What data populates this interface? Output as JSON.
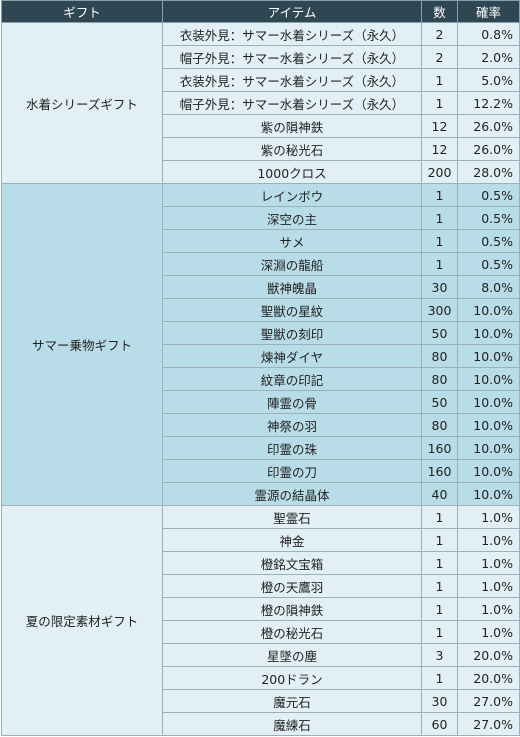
{
  "header": {
    "gift": "ギフト",
    "item": "アイテム",
    "qty": "数",
    "rate": "確率"
  },
  "groups": [
    {
      "name": "水着シリーズギフト",
      "rows": [
        {
          "item": "衣装外見：サマー水着シリーズ（永久）",
          "qty": "2",
          "rate": "0.8%"
        },
        {
          "item": "帽子外見：サマー水着シリーズ（永久）",
          "qty": "2",
          "rate": "2.0%"
        },
        {
          "item": "衣装外見：サマー水着シリーズ（永久）",
          "qty": "1",
          "rate": "5.0%"
        },
        {
          "item": "帽子外見：サマー水着シリーズ（永久）",
          "qty": "1",
          "rate": "12.2%"
        },
        {
          "item": "紫の隕神鉄",
          "qty": "12",
          "rate": "26.0%"
        },
        {
          "item": "紫の秘光石",
          "qty": "12",
          "rate": "26.0%"
        },
        {
          "item": "1000クロス",
          "qty": "200",
          "rate": "28.0%"
        }
      ]
    },
    {
      "name": "サマー乗物ギフト",
      "rows": [
        {
          "item": "レインボウ",
          "qty": "1",
          "rate": "0.5%"
        },
        {
          "item": "深空の主",
          "qty": "1",
          "rate": "0.5%"
        },
        {
          "item": "サメ",
          "qty": "1",
          "rate": "0.5%"
        },
        {
          "item": "深淵の龍船",
          "qty": "1",
          "rate": "0.5%"
        },
        {
          "item": "獣神魄晶",
          "qty": "30",
          "rate": "8.0%"
        },
        {
          "item": "聖獣の星紋",
          "qty": "300",
          "rate": "10.0%"
        },
        {
          "item": "聖獣の刻印",
          "qty": "50",
          "rate": "10.0%"
        },
        {
          "item": "煉神ダイヤ",
          "qty": "80",
          "rate": "10.0%"
        },
        {
          "item": "紋章の印記",
          "qty": "80",
          "rate": "10.0%"
        },
        {
          "item": "陣霊の骨",
          "qty": "50",
          "rate": "10.0%"
        },
        {
          "item": "神祭の羽",
          "qty": "80",
          "rate": "10.0%"
        },
        {
          "item": "印霊の珠",
          "qty": "160",
          "rate": "10.0%"
        },
        {
          "item": "印霊の刀",
          "qty": "160",
          "rate": "10.0%"
        },
        {
          "item": "霊源の結晶体",
          "qty": "40",
          "rate": "10.0%"
        }
      ]
    },
    {
      "name": "夏の限定素材ギフト",
      "rows": [
        {
          "item": "聖霊石",
          "qty": "1",
          "rate": "1.0%"
        },
        {
          "item": "神金",
          "qty": "1",
          "rate": "1.0%"
        },
        {
          "item": "橙銘文宝箱",
          "qty": "1",
          "rate": "1.0%"
        },
        {
          "item": "橙の天鷹羽",
          "qty": "1",
          "rate": "1.0%"
        },
        {
          "item": "橙の隕神鉄",
          "qty": "1",
          "rate": "1.0%"
        },
        {
          "item": "橙の秘光石",
          "qty": "1",
          "rate": "1.0%"
        },
        {
          "item": "星墜の塵",
          "qty": "3",
          "rate": "20.0%"
        },
        {
          "item": "200ドラン",
          "qty": "1",
          "rate": "20.0%"
        },
        {
          "item": "魔元石",
          "qty": "30",
          "rate": "27.0%"
        },
        {
          "item": "魔練石",
          "qty": "60",
          "rate": "27.0%"
        }
      ]
    }
  ]
}
